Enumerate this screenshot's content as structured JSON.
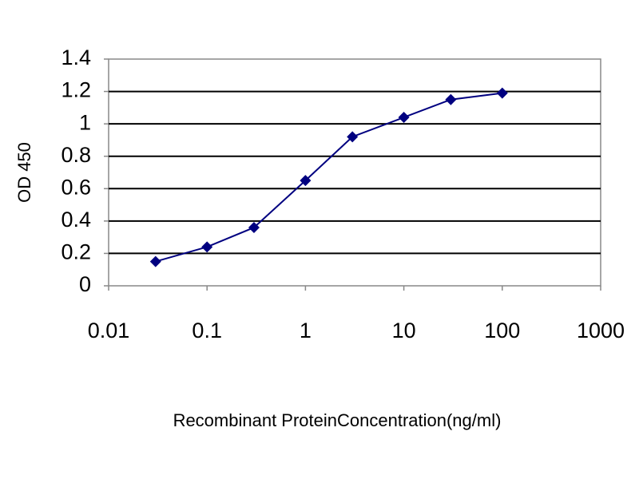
{
  "chart_data": {
    "type": "line",
    "x_label": "Recombinant ProteinConcentration(ng/ml)",
    "y_label": "OD 450",
    "x": [
      0.03,
      0.1,
      0.3,
      1,
      3,
      10,
      30,
      100
    ],
    "series": [
      {
        "color": "#000080",
        "values": [
          0.15,
          0.24,
          0.36,
          0.65,
          0.92,
          1.04,
          1.15,
          1.19
        ]
      }
    ],
    "xscale": "log",
    "xlim": [
      0.01,
      1000
    ],
    "xticks": [
      0.01,
      0.1,
      1,
      10,
      100,
      1000
    ],
    "ylim": [
      0,
      1.4
    ],
    "yticks": [
      0,
      0.2,
      0.4,
      0.6,
      0.8,
      1,
      1.2,
      1.4
    ],
    "grid": true
  }
}
